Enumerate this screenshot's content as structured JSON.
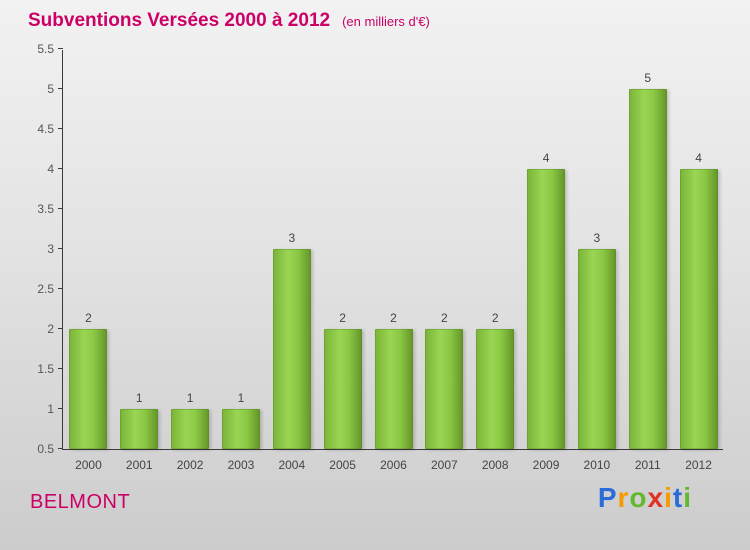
{
  "title": "Subventions Versées 2000 à 2012",
  "subtitle": "(en milliers d'€)",
  "colors": {
    "accent_pink": "#cc0066",
    "bar_green": "#86c741",
    "axis_gray": "#3a3a3a",
    "label_gray": "#444444"
  },
  "footer": {
    "entity_name": "BELMONT",
    "logo_letters": [
      {
        "ch": "P",
        "color": "#2b6bd8"
      },
      {
        "ch": "r",
        "color": "#f59b00"
      },
      {
        "ch": "o",
        "color": "#63b82d"
      },
      {
        "ch": "x",
        "color": "#e03123"
      },
      {
        "ch": "i",
        "color": "#f59b00"
      },
      {
        "ch": "t",
        "color": "#2b6bd8"
      },
      {
        "ch": "i",
        "color": "#63b82d"
      }
    ]
  },
  "chart_data": {
    "type": "bar",
    "title": "Subventions Versées 2000 à 2012",
    "subtitle": "(en milliers d'€)",
    "categories": [
      "2000",
      "2001",
      "2002",
      "2003",
      "2004",
      "2005",
      "2006",
      "2007",
      "2008",
      "2009",
      "2010",
      "2011",
      "2012"
    ],
    "values": [
      2,
      1,
      1,
      1,
      3,
      2,
      2,
      2,
      2,
      4,
      3,
      5,
      4
    ],
    "xlabel": "",
    "ylabel": "",
    "ylim": [
      0.5,
      5.5
    ],
    "ytick_step": 0.5,
    "grid": false,
    "legend": "none",
    "bar_color": "#86c741"
  }
}
